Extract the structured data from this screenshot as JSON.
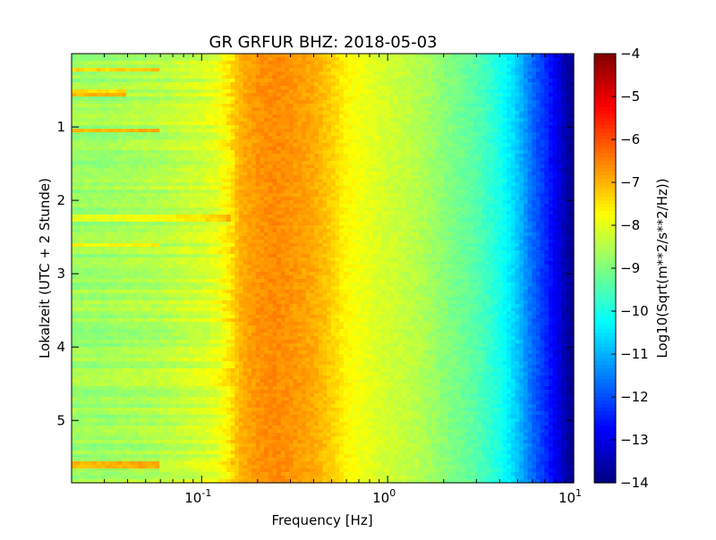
{
  "chart_data": {
    "type": "heatmap",
    "title": "GR GRFUR BHZ: 2018-05-03",
    "xlabel": "Frequency [Hz]",
    "ylabel": "Lokalzeit (UTC + 2 Stunde)",
    "x_scale": "log",
    "xlim": [
      0.02,
      10
    ],
    "ylim": [
      5.85,
      0
    ],
    "x_ticks": [
      {
        "value": 0.1,
        "base": "10",
        "exp": "-1"
      },
      {
        "value": 1,
        "base": "10",
        "exp": "0"
      },
      {
        "value": 10,
        "base": "10",
        "exp": "1"
      }
    ],
    "y_ticks": [
      {
        "value": 1,
        "label": "1"
      },
      {
        "value": 2,
        "label": "2"
      },
      {
        "value": 3,
        "label": "3"
      },
      {
        "value": 4,
        "label": "4"
      },
      {
        "value": 5,
        "label": "5"
      }
    ],
    "colorbar": {
      "label": "Log10(Sqrt(m**2/s**2/Hz))",
      "colormap": "jet",
      "range": [
        -14,
        -4
      ],
      "ticks": [
        {
          "value": -4,
          "label": "−4"
        },
        {
          "value": -5,
          "label": "−5"
        },
        {
          "value": -6,
          "label": "−6"
        },
        {
          "value": -7,
          "label": "−7"
        },
        {
          "value": -8,
          "label": "−8"
        },
        {
          "value": -9,
          "label": "−9"
        },
        {
          "value": -10,
          "label": "−10"
        },
        {
          "value": -11,
          "label": "−11"
        },
        {
          "value": -12,
          "label": "−12"
        },
        {
          "value": -13,
          "label": "−13"
        },
        {
          "value": -14,
          "label": "−14"
        }
      ]
    },
    "frequency_profile": {
      "frequencies_hz": [
        0.02,
        0.03,
        0.04,
        0.06,
        0.08,
        0.1,
        0.12,
        0.14,
        0.16,
        0.2,
        0.25,
        0.3,
        0.4,
        0.5,
        0.6,
        0.8,
        1.0,
        1.2,
        1.5,
        2.0,
        3.0,
        4.0,
        5.0,
        6.0,
        7.0,
        8.0,
        9.0,
        10.0
      ],
      "log10_psd": [
        -8.7,
        -8.7,
        -8.6,
        -8.5,
        -8.3,
        -8.2,
        -8.0,
        -7.6,
        -7.0,
        -6.7,
        -6.6,
        -6.7,
        -6.9,
        -7.3,
        -7.7,
        -8.0,
        -8.2,
        -8.3,
        -8.5,
        -8.9,
        -9.4,
        -10.0,
        -10.8,
        -11.7,
        -12.3,
        -12.9,
        -13.5,
        -13.9
      ]
    },
    "hour_features": [
      {
        "hour": 0.22,
        "max_freq_hz": 0.06,
        "offset": 1.2
      },
      {
        "hour": 0.55,
        "max_freq_hz": 0.04,
        "offset": 1.4
      },
      {
        "hour": 1.05,
        "max_freq_hz": 0.06,
        "offset": 1.5
      },
      {
        "hour": 2.25,
        "max_freq_hz": 0.14,
        "offset": 0.9
      },
      {
        "hour": 2.6,
        "max_freq_hz": 0.06,
        "offset": 1.2
      },
      {
        "hour": 5.6,
        "max_freq_hz": 0.06,
        "offset": 1.4
      }
    ]
  }
}
